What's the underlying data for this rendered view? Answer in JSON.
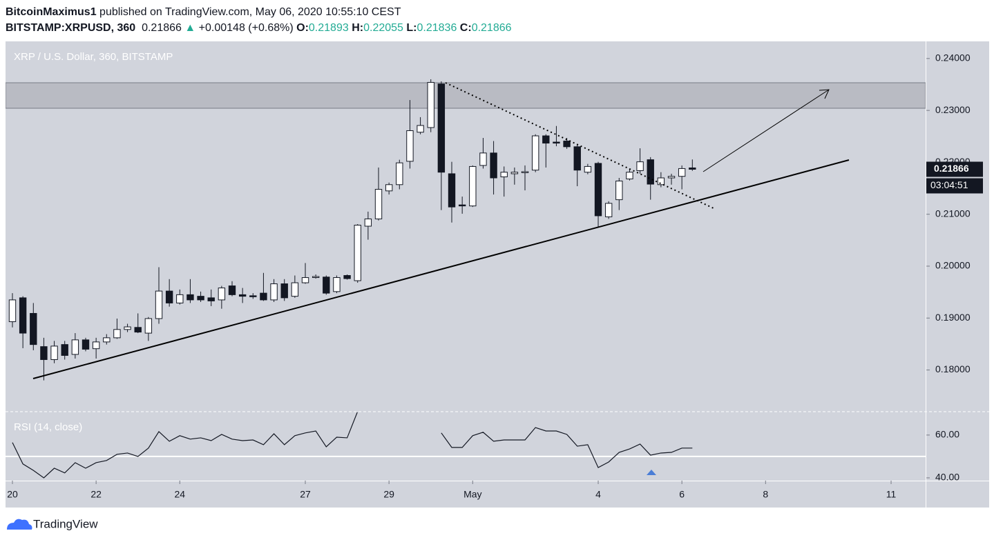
{
  "header": {
    "publisher": "BitcoinMaximus1",
    "published": "published on TradingView.com, May 06, 2020 10:55:10 CEST",
    "symbol": "BITSTAMP:XRPUSD, 360",
    "last": "0.21866",
    "arrow": "▲",
    "change": "+0.00148 (+0.68%)",
    "ohlc": [
      {
        "label": "O:",
        "value": "0.21893"
      },
      {
        "label": "H:",
        "value": "0.22055"
      },
      {
        "label": "L:",
        "value": "0.21836"
      },
      {
        "label": "C:",
        "value": "0.21866"
      }
    ]
  },
  "chart_data": [
    {
      "type": "candlestick",
      "title": "XRP / U.S. Dollar, 360, BITSTAMP",
      "x": [
        0,
        1,
        2,
        3,
        4,
        5,
        6,
        7,
        8,
        9,
        10,
        11,
        12,
        13,
        14,
        15,
        16,
        17,
        18,
        19,
        20,
        21,
        22,
        23,
        24,
        25,
        26,
        27,
        28,
        29,
        30,
        31,
        32,
        33,
        34,
        35,
        36,
        37,
        38,
        39,
        40,
        41,
        42,
        43,
        44,
        45,
        46,
        47,
        48,
        49,
        50,
        51,
        52,
        53,
        54,
        55,
        56,
        57,
        58,
        59,
        60,
        61,
        62,
        63,
        64,
        65
      ],
      "open": [
        0.1893,
        0.1939,
        0.1909,
        0.1845,
        0.182,
        0.1849,
        0.183,
        0.1858,
        0.1841,
        0.1854,
        0.1862,
        0.1878,
        0.1882,
        0.1871,
        0.1899,
        0.1952,
        0.1929,
        0.1945,
        0.1942,
        0.1939,
        0.1935,
        0.1962,
        0.1945,
        0.1943,
        0.1948,
        0.1935,
        0.1966,
        0.1942,
        0.1968,
        0.1978,
        0.1979,
        0.1951,
        0.1982,
        0.1972,
        0.2077,
        0.2091,
        0.2145,
        0.2157,
        0.2202,
        0.2258,
        0.2267,
        0.2351,
        0.2178,
        0.2118,
        0.2116,
        0.2194,
        0.2218,
        0.2172,
        0.2178,
        0.218,
        0.2185,
        0.2251,
        0.2239,
        0.2241,
        0.223,
        0.2181,
        0.2198,
        0.2095,
        0.2128,
        0.2168,
        0.2184,
        0.2205,
        0.2157,
        0.217,
        0.2173,
        0.21893
      ],
      "high": [
        0.1948,
        0.1942,
        0.1929,
        0.1862,
        0.1856,
        0.1856,
        0.1871,
        0.1862,
        0.1862,
        0.1869,
        0.1899,
        0.1889,
        0.1909,
        0.1902,
        0.1998,
        0.1975,
        0.1955,
        0.1975,
        0.1951,
        0.1955,
        0.1962,
        0.1971,
        0.1958,
        0.1948,
        0.1987,
        0.1975,
        0.1975,
        0.1982,
        0.2006,
        0.1984,
        0.1982,
        0.1982,
        0.1984,
        0.2081,
        0.2105,
        0.219,
        0.2161,
        0.2205,
        0.232,
        0.2287,
        0.236,
        0.2356,
        0.2201,
        0.2134,
        0.2194,
        0.2247,
        0.2241,
        0.2192,
        0.219,
        0.2194,
        0.2254,
        0.2254,
        0.227,
        0.2247,
        0.2234,
        0.2197,
        0.2201,
        0.2125,
        0.217,
        0.2188,
        0.2227,
        0.221,
        0.2181,
        0.2178,
        0.2194,
        0.22055
      ],
      "low": [
        0.1882,
        0.1842,
        0.1838,
        0.178,
        0.1813,
        0.182,
        0.1822,
        0.1836,
        0.1822,
        0.1849,
        0.186,
        0.1873,
        0.1871,
        0.1856,
        0.1889,
        0.1922,
        0.1926,
        0.1929,
        0.1931,
        0.1923,
        0.1918,
        0.1942,
        0.1929,
        0.1937,
        0.1933,
        0.1931,
        0.1933,
        0.1939,
        0.1966,
        0.1976,
        0.1945,
        0.1948,
        0.1974,
        0.1968,
        0.2051,
        0.2088,
        0.2138,
        0.2148,
        0.2188,
        0.2254,
        0.2258,
        0.2108,
        0.2084,
        0.2101,
        0.2114,
        0.2188,
        0.2138,
        0.2134,
        0.2157,
        0.2146,
        0.2181,
        0.219,
        0.2231,
        0.2226,
        0.2154,
        0.2177,
        0.2075,
        0.2091,
        0.2108,
        0.2165,
        0.2178,
        0.2128,
        0.2152,
        0.2157,
        0.2148,
        0.21836
      ],
      "close": [
        0.1935,
        0.1871,
        0.1849,
        0.182,
        0.1846,
        0.1828,
        0.1858,
        0.184,
        0.1854,
        0.1862,
        0.1878,
        0.1883,
        0.1873,
        0.1899,
        0.1952,
        0.1929,
        0.1945,
        0.1935,
        0.1935,
        0.1933,
        0.1958,
        0.1945,
        0.1942,
        0.1941,
        0.1935,
        0.1966,
        0.1939,
        0.1968,
        0.1978,
        0.198,
        0.1948,
        0.1978,
        0.1976,
        0.2079,
        0.2091,
        0.2148,
        0.2157,
        0.2199,
        0.2261,
        0.2271,
        0.2354,
        0.2181,
        0.2114,
        0.2116,
        0.2192,
        0.2218,
        0.217,
        0.2181,
        0.2181,
        0.2182,
        0.2251,
        0.2237,
        0.2237,
        0.223,
        0.2185,
        0.2192,
        0.2097,
        0.2121,
        0.2164,
        0.2181,
        0.2201,
        0.2158,
        0.217,
        0.2173,
        0.2188,
        0.21866
      ],
      "up_color": "#ffffff",
      "down_color": "#131722",
      "xlim": [
        -0.66,
        87.3
      ],
      "xticks": [
        {
          "value": 0,
          "label": "20"
        },
        {
          "value": 8,
          "label": "22"
        },
        {
          "value": 16,
          "label": "24"
        },
        {
          "value": 28,
          "label": "27"
        },
        {
          "value": 36,
          "label": "29"
        },
        {
          "value": 44,
          "label": "May"
        },
        {
          "value": 56,
          "label": "4"
        },
        {
          "value": 64,
          "label": "6"
        },
        {
          "value": 72,
          "label": "8"
        },
        {
          "value": 84,
          "label": "11"
        }
      ],
      "ylim": [
        0.1721,
        0.2433
      ],
      "yticks": [
        {
          "value": 0.18,
          "label": "0.18000"
        },
        {
          "value": 0.19,
          "label": "0.19000"
        },
        {
          "value": 0.2,
          "label": "0.20000"
        },
        {
          "value": 0.21,
          "label": "0.21000"
        },
        {
          "value": 0.22,
          "label": "0.22000"
        },
        {
          "value": 0.23,
          "label": "0.23000"
        },
        {
          "value": 0.24,
          "label": "0.24000"
        }
      ],
      "last_label": "0.21866",
      "countdown": "03:04:51"
    },
    {
      "type": "line",
      "title": "RSI (14, close)",
      "x": [
        0,
        1,
        2,
        3,
        4,
        5,
        6,
        7,
        8,
        9,
        10,
        11,
        12,
        13,
        14,
        15,
        16,
        17,
        18,
        19,
        20,
        21,
        22,
        23,
        24,
        25,
        26,
        27,
        28,
        29,
        30,
        31,
        32,
        33,
        34,
        35,
        36,
        37,
        38,
        39,
        40,
        41,
        42,
        43,
        44,
        45,
        46,
        47,
        48,
        49,
        50,
        51,
        52,
        53,
        54,
        55,
        56,
        57,
        58,
        59,
        60,
        61,
        62,
        63,
        64,
        65
      ],
      "values": [
        56.5,
        46.5,
        43.5,
        40.0,
        44.5,
        42.3,
        47.1,
        44.5,
        47.1,
        48.1,
        51.0,
        51.6,
        50.0,
        53.9,
        61.6,
        57.1,
        59.7,
        58.1,
        58.7,
        57.4,
        60.3,
        58.1,
        57.4,
        57.7,
        55.5,
        60.6,
        55.5,
        59.7,
        61.0,
        61.9,
        54.5,
        59.0,
        58.7,
        71,
        null,
        null,
        null,
        null,
        null,
        null,
        null,
        61.0,
        54.2,
        54.2,
        59.7,
        61.3,
        57.1,
        57.7,
        57.7,
        57.7,
        63.5,
        61.9,
        61.9,
        60.3,
        54.8,
        55.5,
        44.8,
        47.4,
        51.9,
        53.5,
        55.8,
        50.6,
        51.6,
        51.9,
        53.9,
        53.9
      ],
      "color": "#131722",
      "level": 50,
      "xlim": [
        -0.66,
        87.3
      ],
      "ylim": [
        38.7,
        70.6
      ],
      "yticks": [
        {
          "value": 40,
          "label": "40.00"
        },
        {
          "value": 60,
          "label": "60.00"
        }
      ]
    }
  ],
  "footer": {
    "brand": "TradingView"
  }
}
